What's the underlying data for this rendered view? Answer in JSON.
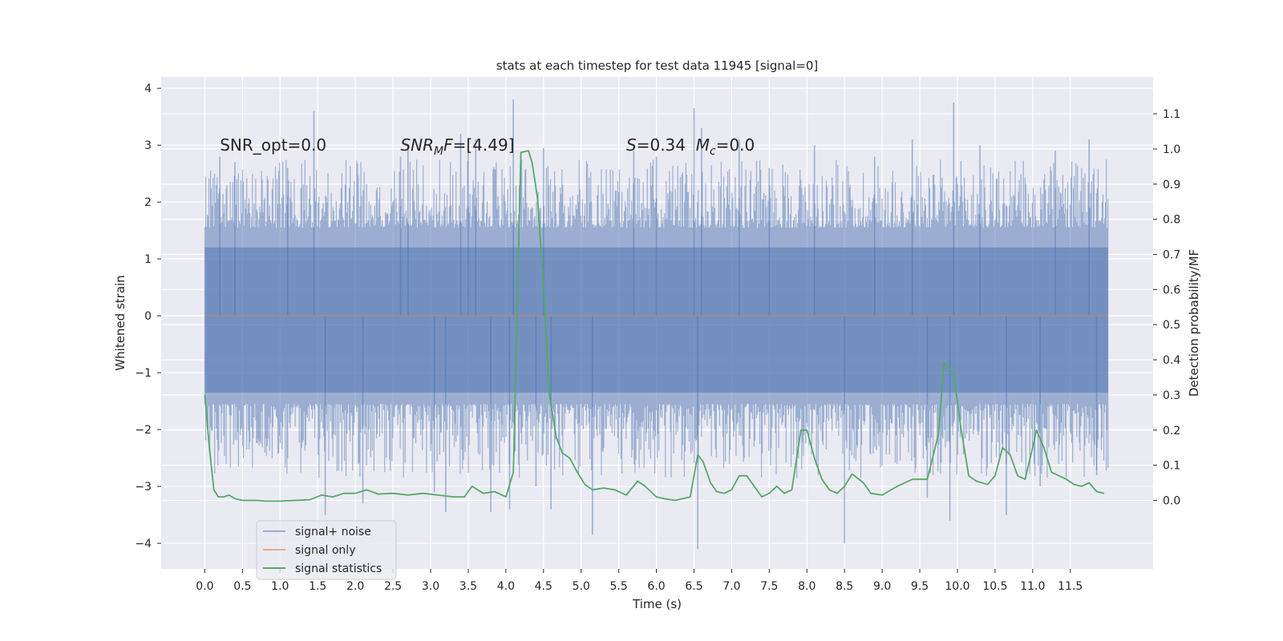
{
  "chart_data": {
    "type": "line",
    "title": "stats at each timestep for test data 11945 [signal=0]",
    "xlabel": "Time (s)",
    "ylabel": "Whitened strain",
    "y2label": "Detection probability/MF",
    "xlim": [
      -0.58,
      12.6
    ],
    "ylim": [
      -4.45,
      4.2
    ],
    "y2lim": [
      -0.195,
      1.205
    ],
    "x_ticks": [
      0.0,
      0.5,
      1.0,
      1.5,
      2.0,
      2.5,
      3.0,
      3.5,
      4.0,
      4.5,
      5.0,
      5.5,
      6.0,
      6.5,
      7.0,
      7.5,
      8.0,
      8.5,
      9.0,
      9.5,
      10.0,
      10.5,
      11.0,
      11.5
    ],
    "x_tick_labels": [
      "0.0",
      "0.5",
      "1.0",
      "1.5",
      "2.0",
      "2.5",
      "3.0",
      "3.5",
      "4.0",
      "4.5",
      "5.0",
      "5.5",
      "6.0",
      "6.5",
      "7.0",
      "7.5",
      "8.0",
      "8.5",
      "9.0",
      "9.5",
      "10.0",
      "10.5",
      "11.0",
      "11.5"
    ],
    "y_ticks": [
      -4,
      -3,
      -2,
      -1,
      0,
      1,
      2,
      3,
      4
    ],
    "y_tick_labels": [
      "−4",
      "−3",
      "−2",
      "−1",
      "0",
      "1",
      "2",
      "3",
      "4"
    ],
    "y2_ticks": [
      0.0,
      0.1,
      0.2,
      0.3,
      0.4,
      0.5,
      0.6,
      0.7,
      0.8,
      0.9,
      1.0,
      1.1
    ],
    "y2_tick_labels": [
      "0.0",
      "0.1",
      "0.2",
      "0.3",
      "0.4",
      "0.5",
      "0.6",
      "0.7",
      "0.8",
      "0.9",
      "1.0",
      "1.1"
    ],
    "grid": true,
    "legend_position": "lower-left",
    "annotations": [
      {
        "kind": "plain",
        "x": 0.2,
        "y": 3.0,
        "text": "SNR_opt=0.0"
      },
      {
        "kind": "snr_mf",
        "x": 2.6,
        "y": 3.0,
        "italic": "SNR",
        "sub": "M",
        "italic2": "F",
        "rest": "=[4.49]"
      },
      {
        "kind": "s_mc",
        "x": 5.6,
        "y": 3.0,
        "s_italic": "S",
        "s_rest": "=0.34",
        "m_italic": "M",
        "m_sub": "c",
        "m_rest": "=0.0"
      }
    ],
    "series": [
      {
        "name": "signal+ noise",
        "axis": "left",
        "color": "#4c72b0",
        "opacity": 0.5,
        "render": "dense-noise",
        "x_range": [
          0.0,
          12.0
        ],
        "n_samples": 1100,
        "core_band": [
          -1.35,
          1.2
        ],
        "extremes": [
          [
            0.2,
            2.8
          ],
          [
            0.4,
            2.7
          ],
          [
            1.1,
            2.6
          ],
          [
            1.45,
            3.6
          ],
          [
            1.6,
            -3.5
          ],
          [
            2.1,
            -3.3
          ],
          [
            2.6,
            2.8
          ],
          [
            3.05,
            -3.1
          ],
          [
            3.4,
            3.2
          ],
          [
            3.5,
            2.9
          ],
          [
            3.2,
            -3.45
          ],
          [
            3.6,
            3.1
          ],
          [
            3.8,
            -3.45
          ],
          [
            4.1,
            3.8
          ],
          [
            4.05,
            -3.4
          ],
          [
            4.4,
            -3.0
          ],
          [
            4.5,
            2.95
          ],
          [
            4.6,
            -3.4
          ],
          [
            5.15,
            -3.85
          ],
          [
            6.0,
            2.8
          ],
          [
            6.5,
            3.65
          ],
          [
            6.55,
            -4.1
          ],
          [
            6.6,
            3.3
          ],
          [
            7.5,
            2.6
          ],
          [
            8.1,
            3.0
          ],
          [
            8.5,
            -4.0
          ],
          [
            8.9,
            2.8
          ],
          [
            9.4,
            3.1
          ],
          [
            9.95,
            3.75
          ],
          [
            9.9,
            -3.6
          ],
          [
            10.3,
            3.0
          ],
          [
            10.65,
            -3.5
          ],
          [
            11.3,
            2.9
          ],
          [
            11.75,
            3.1
          ],
          [
            11.85,
            -2.8
          ],
          [
            2.7,
            3.0
          ],
          [
            5.7,
            2.9
          ],
          [
            7.1,
            3.1
          ],
          [
            9.6,
            -3.2
          ],
          [
            11.1,
            -3.0
          ]
        ]
      },
      {
        "name": "signal only",
        "axis": "left",
        "color": "#dd8452",
        "opacity": 0.6,
        "x": [
          0.0,
          12.0
        ],
        "y": [
          0.0,
          0.0
        ]
      },
      {
        "name": "signal statistics",
        "axis": "right",
        "color": "#55a868",
        "opacity": 1.0,
        "x": [
          0.0,
          0.06,
          0.12,
          0.18,
          0.25,
          0.32,
          0.4,
          0.5,
          0.6,
          0.7,
          0.8,
          0.9,
          1.0,
          1.2,
          1.4,
          1.55,
          1.7,
          1.85,
          2.0,
          2.15,
          2.3,
          2.5,
          2.7,
          2.9,
          3.1,
          3.3,
          3.45,
          3.55,
          3.7,
          3.85,
          4.0,
          4.1,
          4.2,
          4.3,
          4.35,
          4.42,
          4.5,
          4.58,
          4.67,
          4.75,
          4.85,
          4.95,
          5.05,
          5.15,
          5.3,
          5.45,
          5.6,
          5.75,
          5.85,
          6.0,
          6.1,
          6.25,
          6.45,
          6.55,
          6.62,
          6.72,
          6.8,
          6.9,
          7.0,
          7.1,
          7.2,
          7.3,
          7.4,
          7.5,
          7.6,
          7.7,
          7.8,
          7.92,
          8.0,
          8.1,
          8.2,
          8.3,
          8.4,
          8.5,
          8.6,
          8.75,
          8.85,
          9.0,
          9.2,
          9.4,
          9.6,
          9.75,
          9.82,
          9.95,
          10.05,
          10.15,
          10.25,
          10.4,
          10.5,
          10.6,
          10.7,
          10.8,
          10.9,
          11.0,
          11.05,
          11.15,
          11.25,
          11.35,
          11.45,
          11.55,
          11.65,
          11.75,
          11.85,
          11.95
        ],
        "y": [
          0.3,
          0.15,
          0.03,
          0.01,
          0.01,
          0.015,
          0.005,
          0.0,
          0.0,
          0.0,
          -0.002,
          -0.002,
          -0.002,
          0.0,
          0.002,
          0.015,
          0.01,
          0.02,
          0.02,
          0.03,
          0.018,
          0.02,
          0.015,
          0.02,
          0.015,
          0.01,
          0.01,
          0.04,
          0.02,
          0.025,
          0.01,
          0.08,
          0.99,
          0.995,
          0.96,
          0.86,
          0.61,
          0.3,
          0.18,
          0.135,
          0.12,
          0.08,
          0.045,
          0.03,
          0.035,
          0.03,
          0.015,
          0.055,
          0.04,
          0.01,
          0.005,
          0.0,
          0.01,
          0.13,
          0.11,
          0.05,
          0.025,
          0.02,
          0.03,
          0.07,
          0.07,
          0.04,
          0.01,
          0.02,
          0.04,
          0.02,
          0.03,
          0.2,
          0.2,
          0.12,
          0.06,
          0.03,
          0.02,
          0.04,
          0.075,
          0.05,
          0.02,
          0.015,
          0.04,
          0.06,
          0.06,
          0.19,
          0.39,
          0.36,
          0.2,
          0.07,
          0.055,
          0.045,
          0.07,
          0.15,
          0.13,
          0.07,
          0.06,
          0.15,
          0.2,
          0.15,
          0.08,
          0.07,
          0.06,
          0.045,
          0.04,
          0.05,
          0.025,
          0.02
        ]
      }
    ]
  }
}
